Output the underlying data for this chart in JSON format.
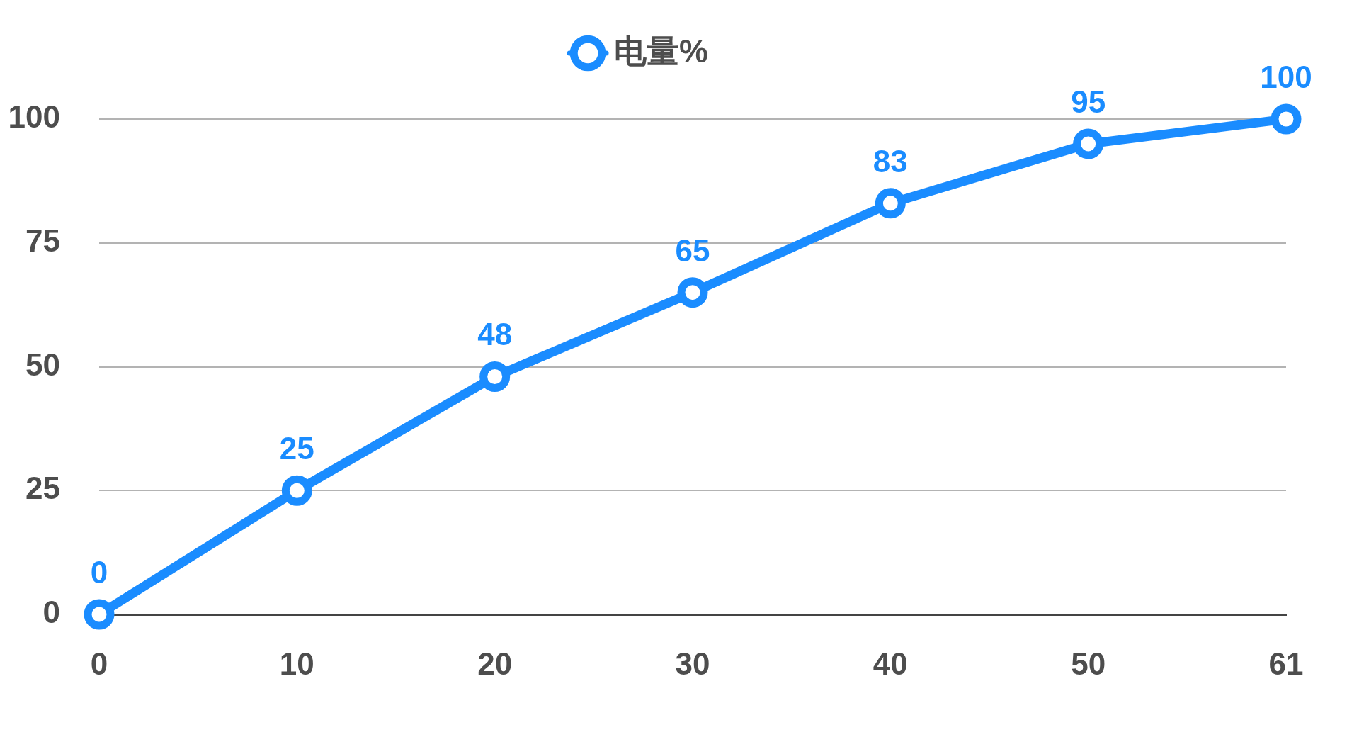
{
  "chart_data": {
    "type": "line",
    "categories": [
      "0",
      "10",
      "20",
      "30",
      "40",
      "50",
      "61"
    ],
    "series": [
      {
        "name": "电量%",
        "color": "#1a8cff",
        "values": [
          0,
          25,
          48,
          65,
          83,
          95,
          100
        ]
      }
    ],
    "ylim": [
      0,
      100
    ],
    "yticks": [
      0,
      25,
      50,
      75,
      100
    ],
    "grid": "y",
    "legend": "top",
    "marker": "circle",
    "line_style": "solid",
    "data_labels": true
  }
}
